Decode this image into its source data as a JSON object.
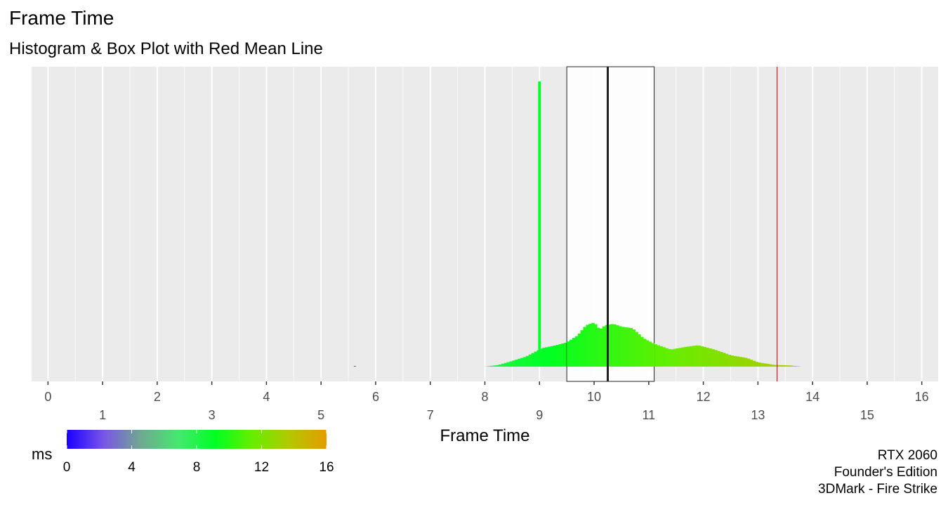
{
  "title": "Frame Time",
  "subtitle": "Histogram & Box Plot with Red Mean Line",
  "chart_data": {
    "type": "histogram",
    "title": "Frame Time",
    "subtitle": "Histogram & Box Plot with Red Mean Line",
    "xlabel": "Frame Time",
    "ylabel": "",
    "xlim": [
      -0.3,
      16.3
    ],
    "grid": true,
    "x_ticks_row1": [
      "0",
      "2",
      "4",
      "6",
      "8",
      "10",
      "12",
      "14",
      "16"
    ],
    "x_ticks_row2": [
      "1",
      "3",
      "5",
      "7",
      "9",
      "11",
      "13",
      "15"
    ],
    "histogram": {
      "bin_width": 0.05,
      "peak_relative_height": 1.0,
      "spike_at": 9.0,
      "spike_relative_height": 1.0,
      "stray_bin_at": 5.6,
      "profile": [
        {
          "x": 8.0,
          "y": 0.0
        },
        {
          "x": 8.25,
          "y": 0.006
        },
        {
          "x": 8.5,
          "y": 0.02
        },
        {
          "x": 8.75,
          "y": 0.035
        },
        {
          "x": 8.95,
          "y": 0.055
        },
        {
          "x": 9.05,
          "y": 0.065
        },
        {
          "x": 9.3,
          "y": 0.075
        },
        {
          "x": 9.5,
          "y": 0.085
        },
        {
          "x": 9.7,
          "y": 0.11
        },
        {
          "x": 9.85,
          "y": 0.145
        },
        {
          "x": 10.0,
          "y": 0.155
        },
        {
          "x": 10.1,
          "y": 0.13
        },
        {
          "x": 10.2,
          "y": 0.145
        },
        {
          "x": 10.35,
          "y": 0.15
        },
        {
          "x": 10.5,
          "y": 0.14
        },
        {
          "x": 10.7,
          "y": 0.135
        },
        {
          "x": 10.9,
          "y": 0.1
        },
        {
          "x": 11.1,
          "y": 0.08
        },
        {
          "x": 11.4,
          "y": 0.06
        },
        {
          "x": 11.7,
          "y": 0.07
        },
        {
          "x": 11.9,
          "y": 0.075
        },
        {
          "x": 12.2,
          "y": 0.06
        },
        {
          "x": 12.5,
          "y": 0.04
        },
        {
          "x": 12.8,
          "y": 0.03
        },
        {
          "x": 13.0,
          "y": 0.015
        },
        {
          "x": 13.3,
          "y": 0.006
        },
        {
          "x": 13.6,
          "y": 0.004
        },
        {
          "x": 13.8,
          "y": 0.0
        }
      ]
    },
    "boxplot": {
      "q1": 9.5,
      "median": 10.25,
      "q3": 11.1
    },
    "mean": 13.35,
    "colorbar": {
      "label": "ms",
      "min": 0,
      "max": 16,
      "ticks": [
        "0",
        "4",
        "8",
        "12",
        "16"
      ],
      "stops": [
        "#1a00ff",
        "#7a55e8",
        "#70a890",
        "#45e870",
        "#00ff22",
        "#66ee00",
        "#b3c800",
        "#e39b00"
      ]
    },
    "colors": {
      "panel": "#ebebeb",
      "grid": "#ffffff",
      "mean_line": "#c0141e",
      "box_edge": "#222222",
      "tick_text": "#4d4d4d"
    }
  },
  "footer": {
    "line1": "RTX 2060",
    "line2": "Founder's Edition",
    "line3": "3DMark - Fire Strike"
  }
}
